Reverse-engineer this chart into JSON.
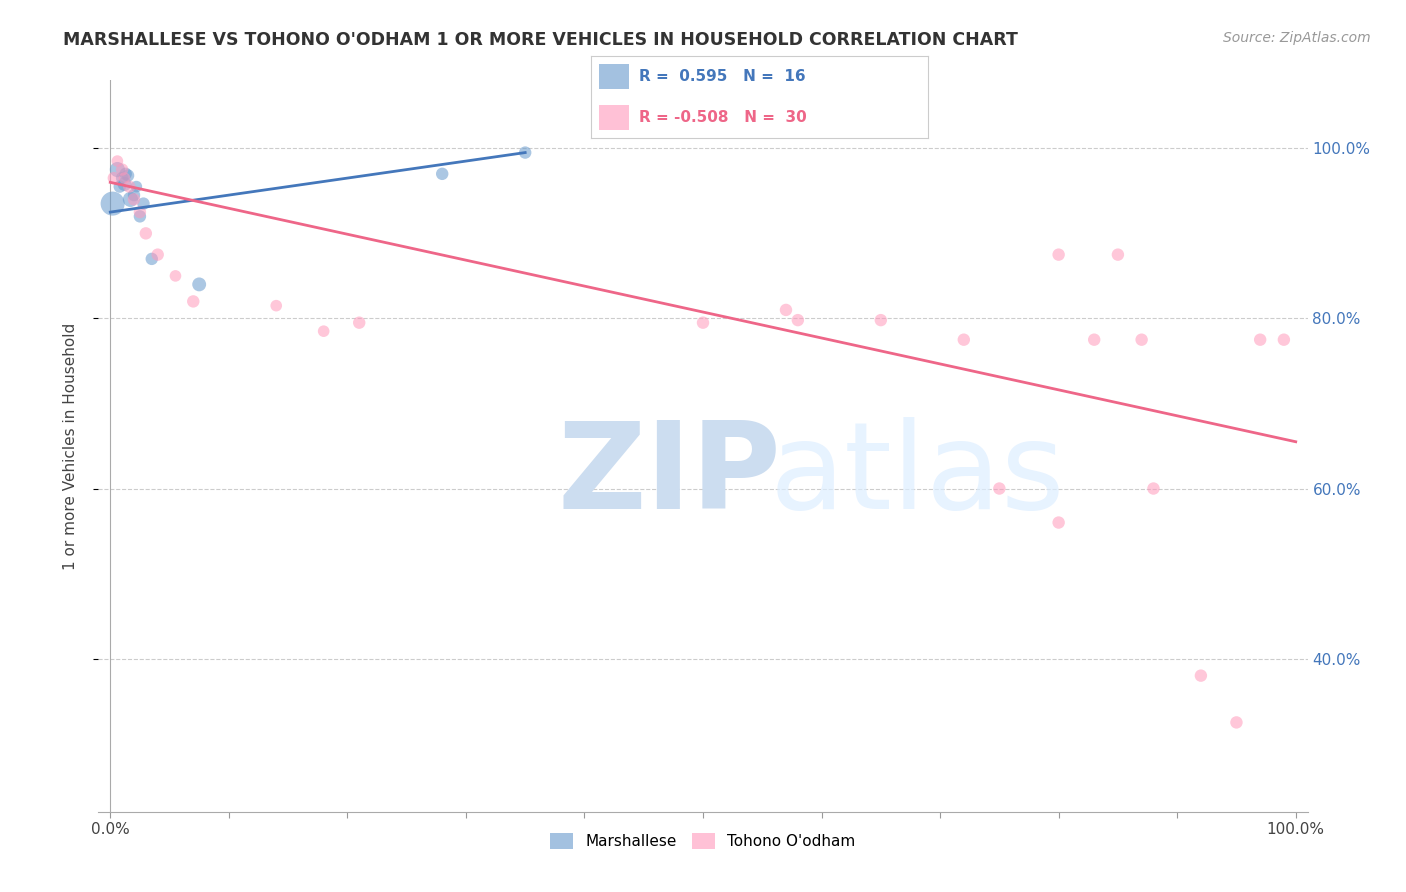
{
  "title": "MARSHALLESE VS TOHONO O'ODHAM 1 OR MORE VEHICLES IN HOUSEHOLD CORRELATION CHART",
  "source": "Source: ZipAtlas.com",
  "ylabel": "1 or more Vehicles in Household",
  "ytick_labels": [
    "100.0%",
    "80.0%",
    "60.0%",
    "40.0%"
  ],
  "ytick_values": [
    1.0,
    0.8,
    0.6,
    0.4
  ],
  "xlim": [
    -0.01,
    1.01
  ],
  "ylim": [
    0.22,
    1.08
  ],
  "blue_color": "#6699CC",
  "pink_color": "#FF99BB",
  "blue_line_color": "#4477BB",
  "pink_line_color": "#EE6688",
  "marshallese_x": [
    0.002,
    0.006,
    0.008,
    0.01,
    0.012,
    0.013,
    0.015,
    0.017,
    0.02,
    0.022,
    0.025,
    0.028,
    0.035,
    0.075,
    0.28,
    0.35
  ],
  "marshallese_y": [
    0.935,
    0.975,
    0.955,
    0.965,
    0.958,
    0.97,
    0.968,
    0.94,
    0.945,
    0.955,
    0.92,
    0.935,
    0.87,
    0.84,
    0.97,
    0.995
  ],
  "marshallese_sizes": [
    300,
    120,
    80,
    80,
    100,
    80,
    80,
    120,
    80,
    70,
    80,
    80,
    80,
    100,
    80,
    80
  ],
  "tohono_x": [
    0.003,
    0.006,
    0.01,
    0.012,
    0.016,
    0.02,
    0.025,
    0.03,
    0.04,
    0.055,
    0.07,
    0.14,
    0.18,
    0.21,
    0.5,
    0.58,
    0.65,
    0.72,
    0.75,
    0.8,
    0.83,
    0.87,
    0.88,
    0.92,
    0.95,
    0.97,
    0.99,
    0.8,
    0.57,
    0.85
  ],
  "tohono_y": [
    0.965,
    0.985,
    0.975,
    0.965,
    0.955,
    0.94,
    0.925,
    0.9,
    0.875,
    0.85,
    0.82,
    0.815,
    0.785,
    0.795,
    0.795,
    0.798,
    0.798,
    0.775,
    0.6,
    0.56,
    0.775,
    0.775,
    0.6,
    0.38,
    0.325,
    0.775,
    0.775,
    0.875,
    0.81,
    0.875
  ],
  "tohono_sizes": [
    80,
    70,
    80,
    70,
    80,
    80,
    80,
    80,
    80,
    70,
    80,
    70,
    70,
    80,
    80,
    80,
    80,
    80,
    80,
    80,
    80,
    80,
    80,
    80,
    80,
    80,
    80,
    80,
    80,
    80
  ],
  "blue_trend_x": [
    0.0,
    0.35
  ],
  "blue_trend_y": [
    0.925,
    0.995
  ],
  "pink_trend_x": [
    0.0,
    1.0
  ],
  "pink_trend_y": [
    0.96,
    0.655
  ],
  "xtick_positions": [
    0.0,
    0.1,
    0.2,
    0.3,
    0.4,
    0.5,
    0.6,
    0.7,
    0.8,
    0.9,
    1.0
  ],
  "watermark_zip_color": "#CCDDF0",
  "watermark_atlas_color": "#CCDDF0"
}
